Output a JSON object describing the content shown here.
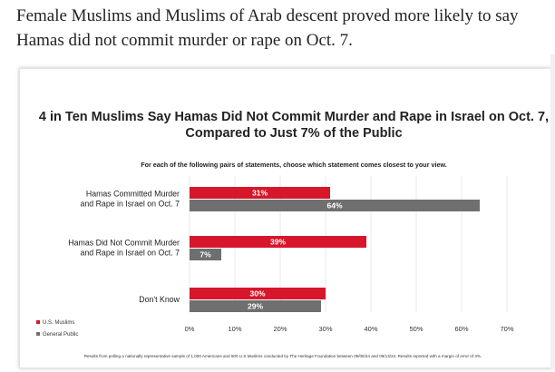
{
  "article": {
    "paragraph": "Female Muslims and Muslims of Arab descent proved more likely to say Hamas did not commit murder or rape on Oct. 7."
  },
  "chart_data": {
    "type": "bar",
    "orientation": "horizontal",
    "title_line1": "4 in Ten Muslims Say Hamas Did Not Commit Murder and Rape in Israel on Oct. 7,",
    "title_line2": "Compared to Just 7% of the Public",
    "subtitle": "For each of the following pairs of statements, choose which statement comes closest to your view.",
    "categories": [
      [
        "Hamas Committed Murder",
        "and Rape in Israel on Oct. 7"
      ],
      [
        "Hamas Did Not Commit Murder",
        "and Rape in Israel on Oct. 7"
      ],
      [
        "Don't Know"
      ]
    ],
    "series": [
      {
        "name": "U.S. Muslims",
        "color": "#d7162b",
        "values": [
          31,
          39,
          30
        ]
      },
      {
        "name": "General Public",
        "color": "#6f6f6f",
        "values": [
          64,
          7,
          29
        ]
      }
    ],
    "value_suffix": "%",
    "xlim": [
      0,
      70
    ],
    "xticks": [
      "0%",
      "10%",
      "20%",
      "30%",
      "40%",
      "50%",
      "60%",
      "70%"
    ],
    "legend_position": "bottom-left",
    "grid": true,
    "footnote": "Results from polling a nationally representative sample of 1,000 Americans and 500 U.S Muslims conducted by The Heritage Foundation between 09/06/24 and 09/13/24. Results reported with a margin of error of 3%."
  }
}
